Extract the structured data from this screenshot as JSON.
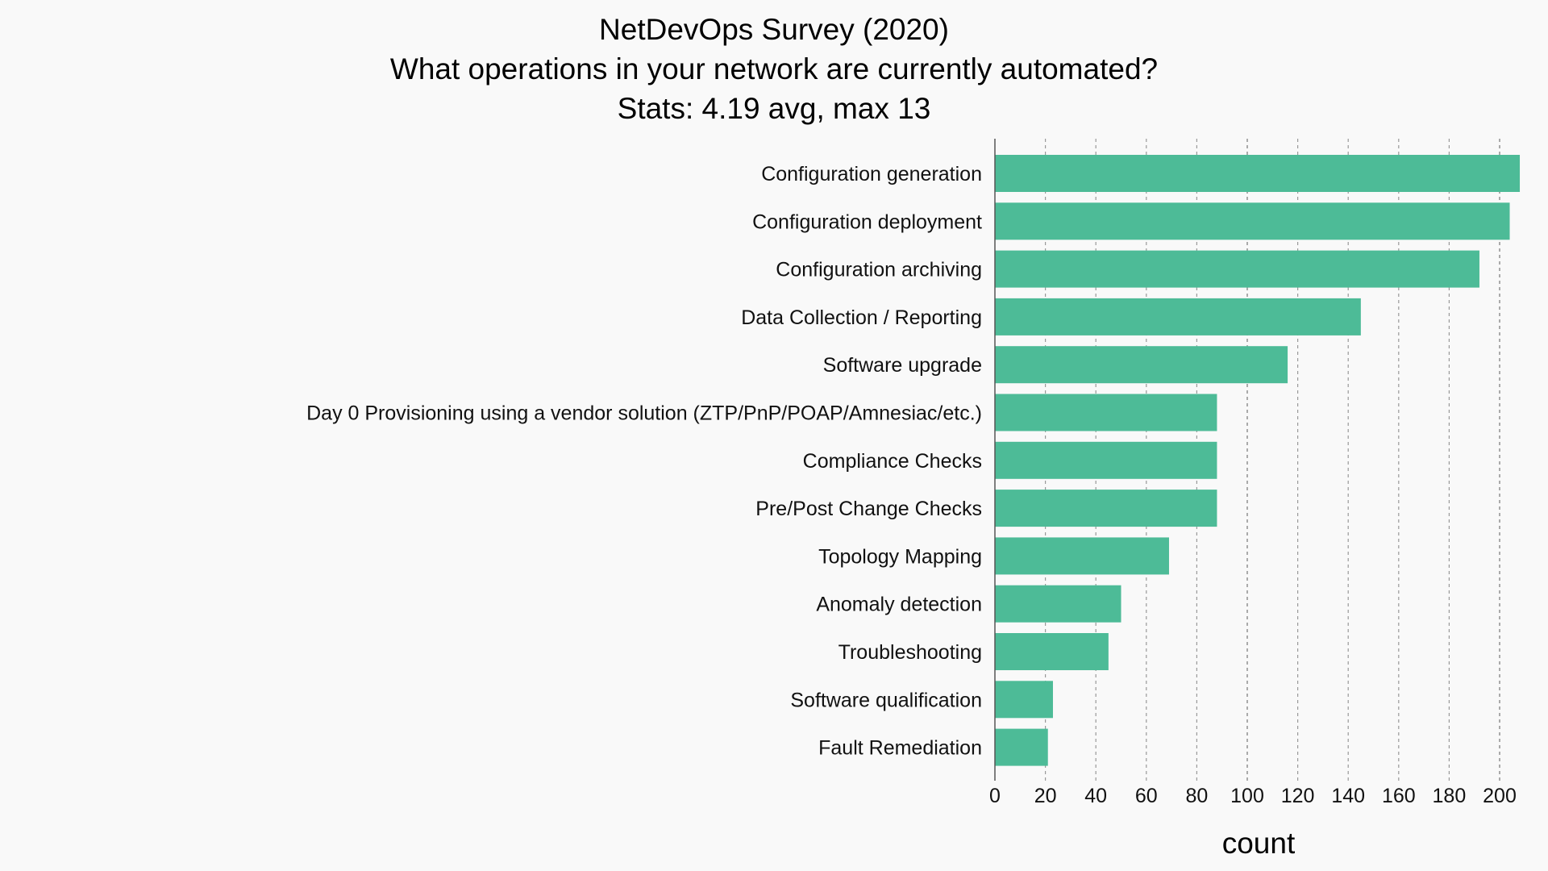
{
  "chart_data": {
    "type": "bar",
    "orientation": "horizontal",
    "title": "NetDevOps Survey (2020)",
    "subtitle": "What operations in your network are currently automated?",
    "stats_line": "Stats: 4.19 avg, max 13",
    "xlabel": "count",
    "ylabel": "",
    "xlim": [
      0,
      212
    ],
    "x_ticks": [
      0,
      20,
      40,
      60,
      80,
      100,
      120,
      140,
      160,
      180,
      200
    ],
    "grid": "vertical dashed",
    "bar_color": "#4dbb97",
    "categories": [
      "Configuration generation",
      "Configuration deployment",
      "Configuration archiving",
      "Data Collection / Reporting",
      "Software upgrade",
      "Day 0 Provisioning using a vendor solution (ZTP/PnP/POAP/Amnesiac/etc.)",
      "Compliance Checks",
      "Pre/Post Change Checks",
      "Topology Mapping",
      "Anomaly detection",
      "Troubleshooting",
      "Software qualification",
      "Fault Remediation"
    ],
    "values": [
      208,
      204,
      192,
      145,
      116,
      88,
      88,
      88,
      69,
      50,
      45,
      23,
      21
    ]
  }
}
